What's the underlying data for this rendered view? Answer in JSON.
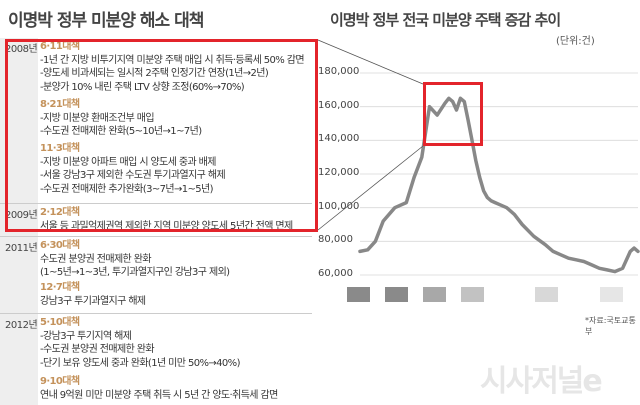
{
  "left_title": "이명박 정부 미분양 해소 대책",
  "right_title": "이명박 정부 전국 미분양 주택 증감 추이",
  "unit_label": "(단위:건)",
  "source": "*자료:국토교통부",
  "watermark": "시사저널e",
  "timeline": [
    {
      "year": "2008년",
      "entries": [
        {
          "head": "6·11대책",
          "lines": [
            "-1년 간 지방 비투기지역 미분양 주택 매입 시 취득·등록세 50% 감면",
            "-양도세 비과세되는 일시적 2주택 인정기간 연장(1년→2년)",
            "-분양가 10% 내린 주택 LTV 상향 조정(60%→70%)"
          ]
        },
        {
          "head": "8·21대책",
          "lines": [
            "-지방 미분양 환매조건부 매입",
            "-수도권 전매제한 완화(5~10년→1~7년)"
          ]
        },
        {
          "head": "11·3대책",
          "lines": [
            "-지방 미분양 아파트 매입 시 양도세 중과 배제",
            "-서울 강남3구 제외한 수도권 투기과열지구 해제",
            "-수도권 전매제한 추가완화(3~7년→1~5년)"
          ]
        }
      ]
    },
    {
      "year": "2009년",
      "entries": [
        {
          "head": "2·12대책",
          "lines": [
            "서울 등 과밀억제권역 제외한 지역 미분양 양도세 5년간 전액 면제"
          ]
        }
      ]
    },
    {
      "year": "2011년",
      "entries": [
        {
          "head": "6·30대책",
          "lines": [
            "수도권 분양권 전매제한 완화",
            "(1~5년→1~3년, 투기과열지구인 강남3구 제외)"
          ]
        },
        {
          "head": "12·7대책",
          "lines": [
            "강남3구 투기과열지구 해제"
          ]
        }
      ]
    },
    {
      "year": "2012년",
      "entries": [
        {
          "head": "5·10대책",
          "lines": [
            "-강남3구 투기지역 해제",
            "-수도권 분양권 전매제한 완화",
            "-단기 보유 양도세 중과 완화(1년 미만 50%→40%)"
          ]
        },
        {
          "head": "9·10대책",
          "lines": [
            "연내 9억원 미만 미분양 주택 취득 시 5년 간 양도·취득세 감면"
          ]
        }
      ]
    }
  ],
  "chart_data": {
    "type": "line",
    "title": "이명박 정부 전국 미분양 주택 증감 추이",
    "ylabel": "(단위:건)",
    "yticks": [
      "180,000",
      "160,000",
      "140,000",
      "120,000",
      "100,000",
      "80,000",
      "60,000"
    ],
    "ylim": [
      60000,
      180000
    ],
    "x": [
      0,
      2,
      4,
      6,
      9,
      12,
      14,
      16,
      18,
      20,
      22,
      23,
      24,
      25,
      26,
      27,
      28,
      29,
      30,
      31,
      32,
      33,
      34,
      35,
      36,
      38,
      40,
      42,
      45,
      48,
      50,
      52,
      54,
      56,
      58,
      60,
      62,
      64,
      66,
      68,
      70,
      71,
      72
    ],
    "values": [
      74000,
      75000,
      80000,
      92000,
      100000,
      103000,
      118000,
      130000,
      160000,
      155000,
      162000,
      165000,
      163000,
      158000,
      165000,
      163000,
      152000,
      140000,
      128000,
      118000,
      110000,
      106000,
      104000,
      103000,
      102000,
      100000,
      96000,
      90000,
      83000,
      78000,
      74000,
      72000,
      70000,
      69000,
      68000,
      66000,
      64000,
      63000,
      62000,
      64000,
      74000,
      76000,
      74000
    ],
    "grid": true,
    "legend_swatches": [
      "#8a8a8a",
      "#8a8a8a",
      "#a8a8a8",
      "#c2c2c2",
      "#d8d8d8",
      "#e6e6e6"
    ],
    "line_color": "#888888"
  }
}
